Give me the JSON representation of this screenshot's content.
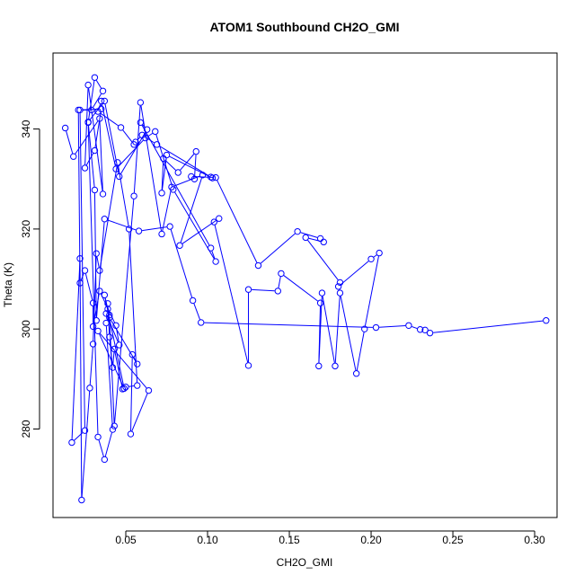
{
  "chart_data": {
    "type": "line",
    "title": "ATOM1 Southbound CH2O_GMI",
    "xlabel": "CH2O_GMI",
    "ylabel": "Theta (K)",
    "xlim": [
      0.0055,
      0.3137
    ],
    "ylim": [
      262.3,
      355.2
    ],
    "xticks": [
      0.05,
      0.1,
      0.15,
      0.2,
      0.25,
      0.3
    ],
    "xtick_labels": [
      "0.05",
      "0.10",
      "0.15",
      "0.20",
      "0.25",
      "0.30"
    ],
    "yticks": [
      280,
      300,
      320,
      340
    ],
    "ytick_labels": [
      "280",
      "300",
      "320",
      "340"
    ],
    "grid": false,
    "colors": {
      "series": "#0000ff",
      "axis": "#000000",
      "background": "#ffffff"
    },
    "marker": "open-circle",
    "x": [
      0.013,
      0.018,
      0.034,
      0.036,
      0.027,
      0.025,
      0.031,
      0.035,
      0.021,
      0.022,
      0.025,
      0.03,
      0.03,
      0.034,
      0.044,
      0.046,
      0.038,
      0.04,
      0.057,
      0.054,
      0.053,
      0.064,
      0.033,
      0.049,
      0.037,
      0.039,
      0.039,
      0.04,
      0.042,
      0.043,
      0.048,
      0.05,
      0.057,
      0.052,
      0.045,
      0.034,
      0.032,
      0.03,
      0.028,
      0.023,
      0.022,
      0.017,
      0.025,
      0.022,
      0.029,
      0.036,
      0.031,
      0.027,
      0.033,
      0.037,
      0.042,
      0.038,
      0.04,
      0.043,
      0.055,
      0.059,
      0.072,
      0.078,
      0.097,
      0.083,
      0.107,
      0.104,
      0.125,
      0.125,
      0.143,
      0.145,
      0.169,
      0.168,
      0.17,
      0.178,
      0.181,
      0.191,
      0.196,
      0.205,
      0.2,
      0.18,
      0.181,
      0.16,
      0.171,
      0.169,
      0.155,
      0.131,
      0.105,
      0.09,
      0.092,
      0.093,
      0.082,
      0.073,
      0.072,
      0.075,
      0.103,
      0.102,
      0.069,
      0.06,
      0.056,
      0.055,
      0.047,
      0.033,
      0.035,
      0.044,
      0.062,
      0.068,
      0.079,
      0.105,
      0.102,
      0.059,
      0.063,
      0.046,
      0.037,
      0.027,
      0.031,
      0.032,
      0.037,
      0.058,
      0.077,
      0.091,
      0.096,
      0.203,
      0.223,
      0.23,
      0.233,
      0.236,
      0.307
    ],
    "y": [
      340.2,
      334.5,
      342.1,
      327.0,
      348.8,
      332.2,
      335.7,
      344.0,
      343.8,
      309.2,
      311.7,
      305.2,
      300.5,
      307.6,
      300.7,
      296.8,
      303.1,
      302.3,
      293.0,
      294.9,
      279.0,
      287.7,
      299.6,
      288.1,
      306.8,
      304.0,
      305.1,
      298.4,
      292.3,
      296.0,
      288.0,
      288.4,
      288.7,
      320.0,
      333.3,
      311.7,
      315.1,
      297.0,
      288.2,
      265.8,
      314.1,
      277.3,
      279.7,
      343.8,
      343.8,
      347.6,
      350.3,
      341.3,
      278.4,
      273.9,
      279.9,
      301.2,
      302.8,
      280.6,
      326.6,
      345.3,
      319.0,
      328.4,
      330.8,
      316.7,
      322.1,
      321.4,
      292.7,
      307.9,
      307.6,
      311.1,
      305.2,
      292.6,
      307.2,
      292.6,
      307.2,
      291.1,
      300.0,
      315.2,
      314.0,
      308.5,
      309.3,
      318.3,
      317.4,
      318.1,
      319.5,
      312.7,
      330.3,
      330.5,
      330.0,
      335.5,
      331.3,
      334.1,
      327.2,
      334.8,
      330.2,
      330.4,
      336.9,
      338.8,
      337.4,
      336.9,
      340.3,
      343.5,
      345.6,
      332.0,
      338.2,
      339.5,
      327.9,
      313.5,
      316.2,
      341.3,
      339.9,
      330.5,
      345.6,
      341.4,
      327.8,
      301.7,
      322.0,
      319.6,
      320.5,
      305.7,
      301.3,
      300.3,
      300.7,
      299.9,
      299.8,
      299.2,
      301.7
    ]
  }
}
